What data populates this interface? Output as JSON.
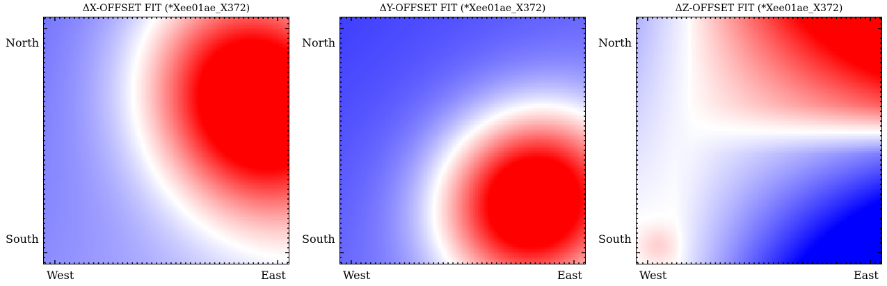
{
  "chart_data": [
    {
      "type": "heatmap",
      "title": "ΔX-OFFSET FIT (*Xee01ae_X372)",
      "xticklabels": [
        "West",
        "East"
      ],
      "yticklabels": [
        "North",
        "South"
      ],
      "colormap": {
        "negative": "#0000ff",
        "zero": "#ffffff",
        "positive": "#ff0000"
      },
      "field": {
        "kind": "gaussian-plus-gradient",
        "peak": [
          0.86,
          0.34
        ],
        "sigma": [
          0.28,
          0.32
        ],
        "rotation": -0.6,
        "gradient": [
          0.9,
          0.4
        ],
        "offset": -0.55,
        "amp": 1.9
      }
    },
    {
      "type": "heatmap",
      "title": "ΔY-OFFSET FIT (*Xee01ae_X372)",
      "xticklabels": [
        "West",
        "East"
      ],
      "yticklabels": [
        "North",
        "South"
      ],
      "colormap": {
        "negative": "#0000ff",
        "zero": "#ffffff",
        "positive": "#ff0000"
      },
      "field": {
        "kind": "gaussian-plus-gradient",
        "peak": [
          0.78,
          0.74
        ],
        "sigma": [
          0.26,
          0.24
        ],
        "rotation": -0.5,
        "gradient": [
          0.6,
          0.6
        ],
        "offset": -0.75,
        "amp": 2.0
      }
    },
    {
      "type": "heatmap",
      "title": "ΔZ-OFFSET FIT (*Xee01ae_X372)",
      "xticklabels": [
        "West",
        "East"
      ],
      "yticklabels": [
        "North",
        "South"
      ],
      "colormap": {
        "negative": "#0000ff",
        "zero": "#ffffff",
        "positive": "#ff0000"
      },
      "field": {
        "kind": "hinge",
        "peak": [
          0.95,
          0.0
        ],
        "blue": [
          1.0,
          1.0
        ],
        "cold_corner": [
          0.0,
          0.05
        ]
      }
    }
  ]
}
